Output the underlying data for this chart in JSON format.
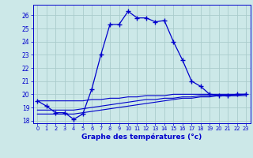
{
  "xlabel": "Graphe des températures (°c)",
  "bg_color": "#cce8e8",
  "grid_color": "#aacccc",
  "line_color": "#0000cc",
  "hours": [
    0,
    1,
    2,
    3,
    4,
    5,
    6,
    7,
    8,
    9,
    10,
    11,
    12,
    13,
    14,
    15,
    16,
    17,
    18,
    19,
    20,
    21,
    22,
    23
  ],
  "temp_main": [
    19.5,
    19.1,
    18.6,
    18.6,
    18.1,
    18.5,
    20.4,
    23.0,
    25.3,
    25.3,
    26.3,
    25.8,
    25.8,
    25.5,
    25.6,
    24.0,
    22.6,
    21.0,
    20.6,
    20.0,
    19.9,
    19.9,
    20.0,
    20.0
  ],
  "temp_line1": [
    19.5,
    19.5,
    19.5,
    19.5,
    19.5,
    19.5,
    19.6,
    19.6,
    19.7,
    19.7,
    19.8,
    19.8,
    19.9,
    19.9,
    19.9,
    20.0,
    20.0,
    20.0,
    20.0,
    20.0,
    20.0,
    20.0,
    20.0,
    20.0
  ],
  "temp_line2": [
    18.8,
    18.8,
    18.8,
    18.8,
    18.8,
    18.9,
    19.0,
    19.1,
    19.2,
    19.3,
    19.4,
    19.5,
    19.6,
    19.6,
    19.7,
    19.7,
    19.8,
    19.8,
    19.9,
    19.9,
    19.9,
    19.9,
    19.9,
    20.0
  ],
  "temp_line3": [
    18.5,
    18.5,
    18.5,
    18.5,
    18.5,
    18.6,
    18.7,
    18.8,
    18.9,
    19.0,
    19.1,
    19.2,
    19.3,
    19.4,
    19.5,
    19.6,
    19.7,
    19.7,
    19.8,
    19.8,
    19.9,
    19.9,
    19.9,
    19.9
  ],
  "ylim": [
    17.8,
    26.8
  ],
  "xlim": [
    -0.5,
    23.5
  ],
  "yticks": [
    18,
    19,
    20,
    21,
    22,
    23,
    24,
    25,
    26
  ],
  "xticks": [
    0,
    1,
    2,
    3,
    4,
    5,
    6,
    7,
    8,
    9,
    10,
    11,
    12,
    13,
    14,
    15,
    16,
    17,
    18,
    19,
    20,
    21,
    22,
    23
  ]
}
